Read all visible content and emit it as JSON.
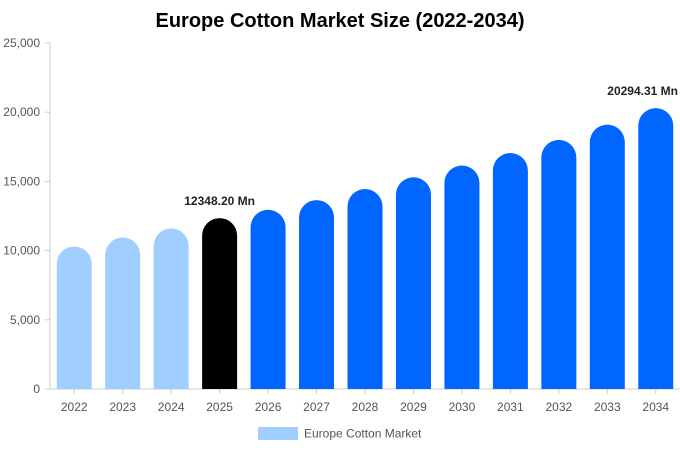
{
  "chart_data": {
    "type": "bar",
    "title": "Europe Cotton Market Size (2022-2034)",
    "xlabel": "",
    "ylabel": "",
    "categories": [
      "2022",
      "2023",
      "2024",
      "2025",
      "2026",
      "2027",
      "2028",
      "2029",
      "2030",
      "2031",
      "2032",
      "2033",
      "2034"
    ],
    "series": [
      {
        "name": "Europe Cotton Market",
        "values": [
          10300,
          10950,
          11600,
          12348.2,
          12950,
          13650,
          14450,
          15300,
          16150,
          17050,
          18000,
          19100,
          20294.31
        ]
      }
    ],
    "ylim": [
      0,
      25000
    ],
    "yticks": [
      "0",
      "5,000",
      "10,000",
      "15,000",
      "20,000",
      "25,000"
    ],
    "ytick_values": [
      0,
      5000,
      10000,
      15000,
      20000,
      25000
    ],
    "grid": false,
    "legend_position": "bottom",
    "annotations": [
      {
        "index": 3,
        "text": "12348.20 Mn"
      },
      {
        "index": 12,
        "text": "20294.31 Mn"
      }
    ],
    "colors": {
      "historical": "#a0cfff",
      "current": "#000000",
      "forecast": "#0066ff",
      "axis": "#cccccc",
      "legend_swatch": "#a0cfff"
    },
    "bar_color_groups": [
      "historical",
      "historical",
      "historical",
      "current",
      "forecast",
      "forecast",
      "forecast",
      "forecast",
      "forecast",
      "forecast",
      "forecast",
      "forecast",
      "forecast"
    ]
  }
}
